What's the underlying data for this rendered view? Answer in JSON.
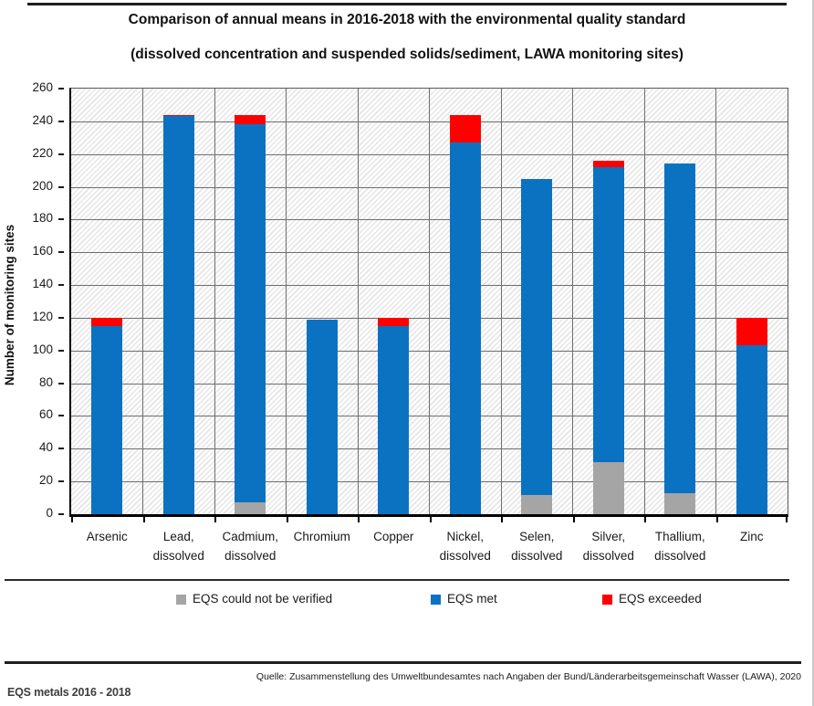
{
  "title": {
    "line1": "Comparison of annual means in 2016-2018 with the environmental quality standard",
    "line2": "(dissolved concentration and suspended solids/sediment, LAWA monitoring sites)"
  },
  "chart_data": {
    "type": "bar",
    "stacked": true,
    "title": "Comparison of annual means in 2016-2018 with the environmental quality standard (dissolved concentration and suspended solids/sediment, LAWA monitoring sites)",
    "categories": [
      [
        "Arsenic"
      ],
      [
        "Lead,",
        "dissolved"
      ],
      [
        "Cadmium,",
        "dissolved"
      ],
      [
        "Chromium"
      ],
      [
        "Copper"
      ],
      [
        "Nickel,",
        "dissolved"
      ],
      [
        "Selen,",
        "dissolved"
      ],
      [
        "Silver,",
        "dissolved"
      ],
      [
        "Thallium,",
        "dissolved"
      ],
      [
        "Zinc"
      ]
    ],
    "series": [
      {
        "name": "EQS could not be verified",
        "color": "#A5A5A5",
        "values": [
          0,
          0,
          7,
          0,
          0,
          0,
          12,
          32,
          13,
          0
        ]
      },
      {
        "name": "EQS met",
        "color": "#0B72C2",
        "values": [
          115,
          243,
          231,
          119,
          115,
          227,
          193,
          180,
          201,
          103
        ]
      },
      {
        "name": "EQS exceeded",
        "color": "#FF0000",
        "values": [
          5,
          1,
          6,
          0,
          5,
          17,
          0,
          4,
          0,
          17
        ]
      }
    ],
    "totals": [
      120,
      244,
      244,
      119,
      120,
      244,
      205,
      216,
      214,
      120
    ],
    "xlabel": "",
    "ylabel": "Number of monitoring sites",
    "ylim": [
      0,
      260
    ],
    "yticks": [
      0,
      20,
      40,
      60,
      80,
      100,
      120,
      140,
      160,
      180,
      200,
      220,
      240,
      260
    ],
    "grid": true,
    "legend_position": "bottom"
  },
  "footer": {
    "source": "Quelle: Zusammenstellung des Umweltbundesamtes nach Angaben der Bund/Länderarbeitsgemeinschaft Wasser (LAWA), 2020",
    "caption": "EQS metals 2016 - 2018"
  }
}
